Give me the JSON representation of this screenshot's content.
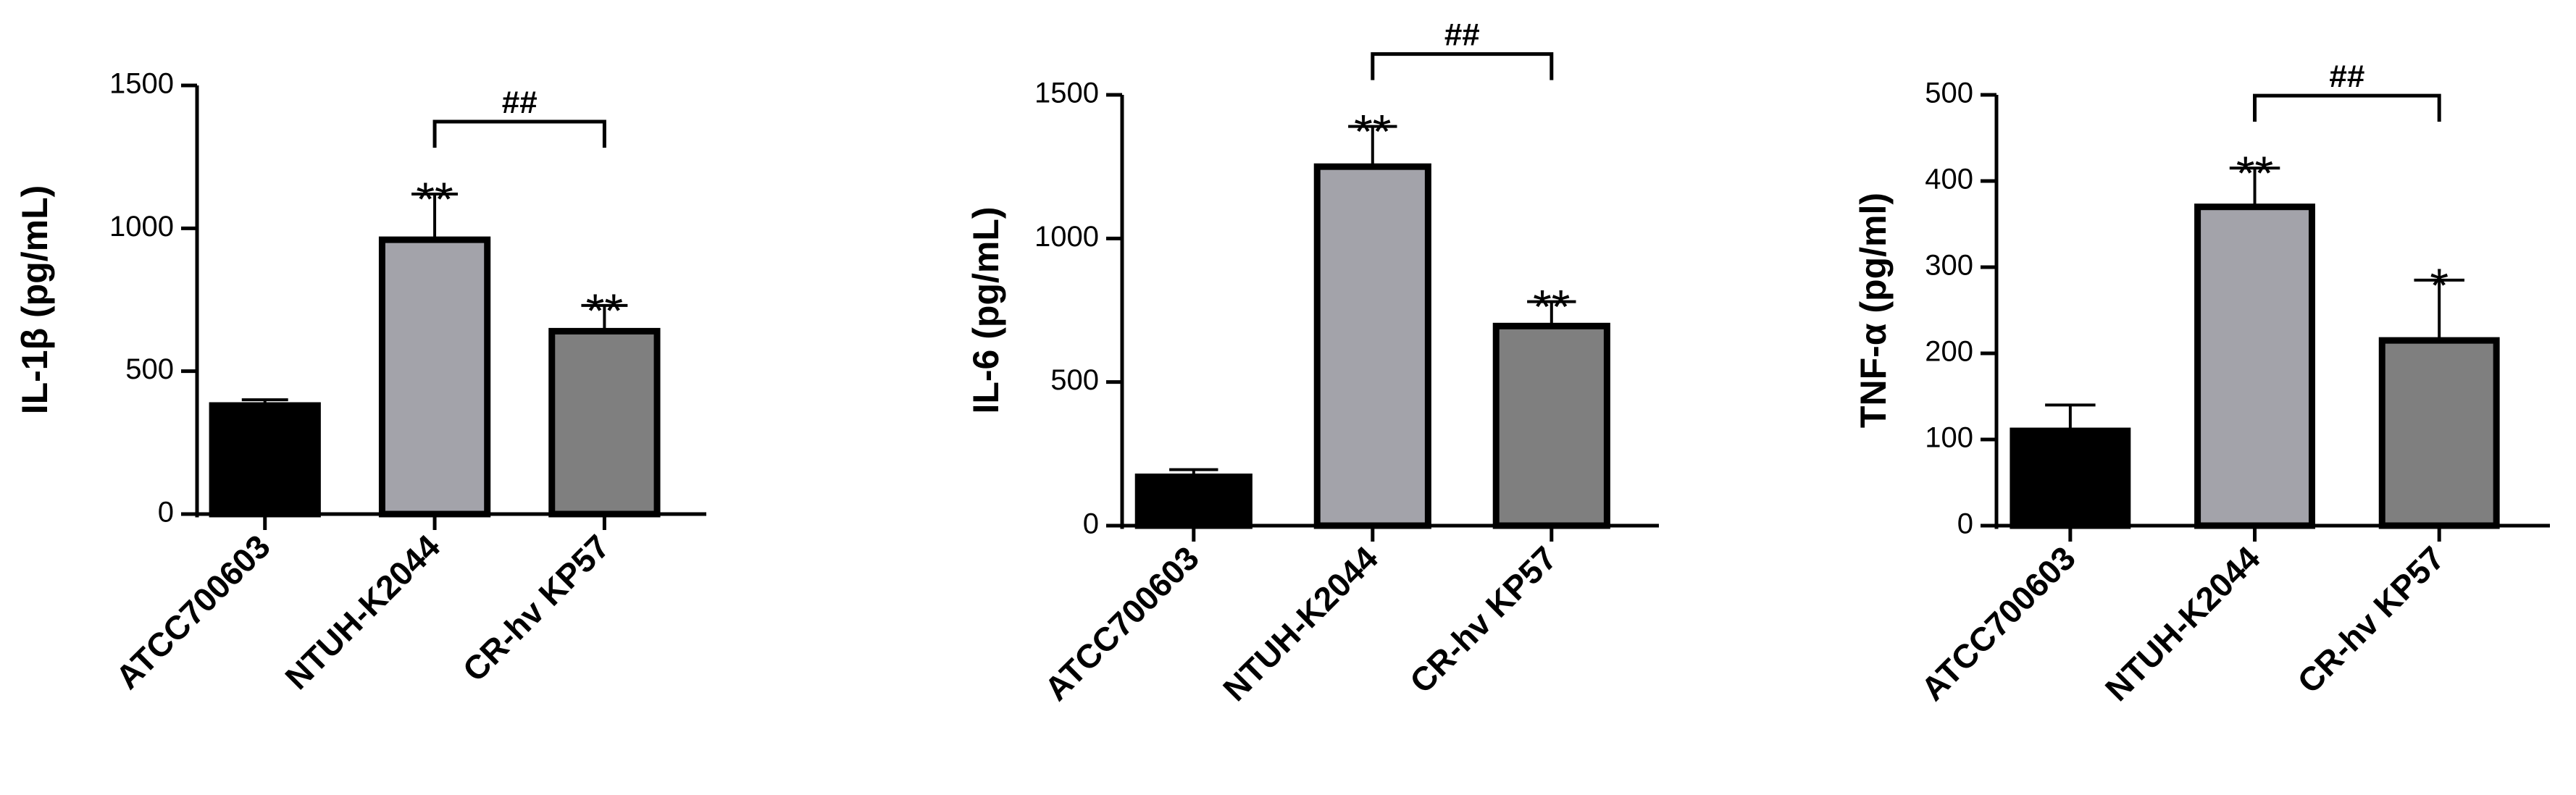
{
  "chart_data": [
    {
      "type": "bar",
      "y_label": "IL-1β (pg/mL)",
      "categories": [
        "ATCC700603",
        "NTUH-K2044",
        "CR-hv KP57"
      ],
      "values": [
        380,
        960,
        640
      ],
      "errors": [
        20,
        160,
        90
      ],
      "colors": [
        "#000000",
        "#a3a3aa",
        "#7f7f7f"
      ],
      "significance": [
        null,
        "**",
        "**"
      ],
      "bracket": {
        "label": "##",
        "between": [
          1,
          2
        ]
      },
      "ylim": [
        0,
        1500
      ],
      "yticks": [
        0,
        500,
        1000,
        1500
      ]
    },
    {
      "type": "bar",
      "y_label": "IL-6 (pg/mL)",
      "categories": [
        "ATCC700603",
        "NTUH-K2044",
        "CR-hv KP57"
      ],
      "values": [
        170,
        1250,
        695
      ],
      "errors": [
        25,
        140,
        85
      ],
      "colors": [
        "#000000",
        "#a3a3aa",
        "#7f7f7f"
      ],
      "significance": [
        null,
        "**",
        "**"
      ],
      "bracket": {
        "label": "##",
        "between": [
          1,
          2
        ]
      },
      "ylim": [
        0,
        1500
      ],
      "yticks": [
        0,
        500,
        1000,
        1500
      ]
    },
    {
      "type": "bar",
      "y_label": "TNF-α (pg/ml)",
      "categories": [
        "ATCC700603",
        "NTUH-K2044",
        "CR-hv KP57"
      ],
      "values": [
        110,
        370,
        215
      ],
      "errors": [
        30,
        45,
        70
      ],
      "colors": [
        "#000000",
        "#a3a3aa",
        "#7f7f7f"
      ],
      "significance": [
        null,
        "**",
        "*"
      ],
      "bracket": {
        "label": "##",
        "between": [
          1,
          2
        ]
      },
      "ylim": [
        0,
        500
      ],
      "yticks": [
        0,
        100,
        200,
        300,
        400,
        500
      ]
    }
  ]
}
